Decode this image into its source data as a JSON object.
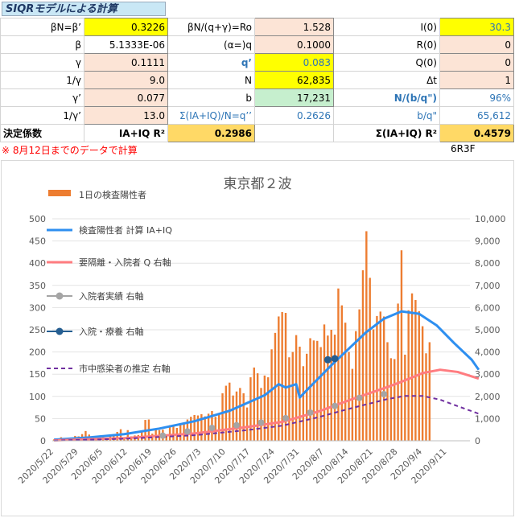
{
  "sheet": {
    "title": "SIQRモデルによる計算",
    "rows": [
      [
        {
          "t": "βN=β’",
          "c": "lbl"
        },
        {
          "t": "0.3226",
          "c": "val yel"
        },
        {
          "t": "βN/(q+γ)=Ro",
          "c": "lbl"
        },
        {
          "t": "1.528",
          "c": "val pch"
        },
        {
          "t": "I(0)",
          "c": "lbl"
        },
        {
          "t": "30.3",
          "c": "val yel blue"
        }
      ],
      [
        {
          "t": "β",
          "c": "lbl"
        },
        {
          "t": "5.1333E-06",
          "c": "val"
        },
        {
          "t": "(α=)q",
          "c": "lbl"
        },
        {
          "t": "0.1000",
          "c": "val pch"
        },
        {
          "t": "R(0)",
          "c": "lbl"
        },
        {
          "t": "0",
          "c": "val pch"
        }
      ],
      [
        {
          "t": "γ",
          "c": "lbl"
        },
        {
          "t": "0.1111",
          "c": "val pch"
        },
        {
          "t": "q’",
          "c": "lbl blue bold"
        },
        {
          "t": "0.083",
          "c": "val yel blue"
        },
        {
          "t": "Q(0)",
          "c": "lbl"
        },
        {
          "t": "0",
          "c": "val pch"
        }
      ],
      [
        {
          "t": "1/γ",
          "c": "lbl"
        },
        {
          "t": "9.0",
          "c": "val pch"
        },
        {
          "t": "N",
          "c": "lbl"
        },
        {
          "t": "62,835",
          "c": "val yel"
        },
        {
          "t": "Δt",
          "c": "lbl"
        },
        {
          "t": "1",
          "c": "val pch"
        }
      ],
      [
        {
          "t": "γ’",
          "c": "lbl"
        },
        {
          "t": "0.077",
          "c": "val pch"
        },
        {
          "t": "b",
          "c": "lbl"
        },
        {
          "t": "17,231",
          "c": "val grn"
        },
        {
          "t": "N/(b/q\")",
          "c": "lbl blue bold"
        },
        {
          "t": "96%",
          "c": "lbl blue"
        }
      ],
      [
        {
          "t": "1/γ’",
          "c": "lbl"
        },
        {
          "t": "13.0",
          "c": "val pch"
        },
        {
          "t": "Σ(IA+IQ)/N=q’’",
          "c": "lbl blue"
        },
        {
          "t": "0.2626",
          "c": "lbl blue"
        },
        {
          "t": "b/q\"",
          "c": "lbl blue"
        },
        {
          "t": "65,612",
          "c": "lbl blue"
        }
      ]
    ],
    "r2_label": "決定係数",
    "r2_a_label": "IA+IQ R²",
    "r2_a_value": "0.2986",
    "r2_b_label": "Σ(IA+IQ) R²",
    "r2_b_value": "0.4579",
    "note": "※ 8月12日までのデータで計算",
    "code": "6R3F"
  },
  "chart_data": {
    "type": "bar",
    "title": "東京都２波",
    "legend": [
      {
        "name": "1日の検査陽性者",
        "color": "#ed7d31",
        "kind": "bar"
      },
      {
        "name": "検査陽性者 計算 IA+IQ",
        "color": "#2e8ff0",
        "kind": "line"
      },
      {
        "name": "要隔離・入院者 Q 右軸",
        "color": "#ff7c80",
        "kind": "line"
      },
      {
        "name": "入院者実績 右軸",
        "color": "#a5a5a5",
        "kind": "marker"
      },
      {
        "name": "入院・療養 右軸",
        "color": "#255e91",
        "kind": "marker"
      },
      {
        "name": "市中感染者の推定 右軸",
        "color": "#7030a0",
        "kind": "dashed"
      }
    ],
    "y_left": {
      "min": 0,
      "max": 500,
      "ticks": [
        "0",
        "50",
        "100",
        "150",
        "200",
        "250",
        "300",
        "350",
        "400",
        "450",
        "500"
      ]
    },
    "y_right": {
      "min": 0,
      "max": 10000,
      "ticks": [
        "0",
        "1,000",
        "2,000",
        "3,000",
        "4,000",
        "5,000",
        "6,000",
        "7,000",
        "8,000",
        "9,000",
        "10,000"
      ]
    },
    "x_ticks": [
      "2020/5/22",
      "2020/5/29",
      "2020/6/5",
      "2020/6/12",
      "2020/6/19",
      "2020/6/26",
      "2020/7/3",
      "2020/7/10",
      "2020/7/17",
      "2020/7/24",
      "2020/7/31",
      "2020/8/7",
      "2020/8/14",
      "2020/8/21",
      "2020/8/28",
      "2020/9/4",
      "2020/9/11"
    ],
    "x_start": "2020/5/22",
    "x_days": 117,
    "bars": [
      3,
      5,
      8,
      3,
      2,
      5,
      11,
      10,
      15,
      22,
      14,
      10,
      5,
      5,
      8,
      3,
      12,
      13,
      20,
      26,
      6,
      24,
      10,
      12,
      13,
      21,
      47,
      48,
      16,
      27,
      24,
      25,
      12,
      35,
      35,
      29,
      39,
      41,
      48,
      54,
      58,
      57,
      60,
      55,
      61,
      67,
      54,
      58,
      107,
      124,
      131,
      102,
      111,
      119,
      107,
      75,
      143,
      165,
      152,
      119,
      147,
      143,
      206,
      243,
      280,
      290,
      288,
      188,
      200,
      238,
      212,
      168,
      196,
      231,
      226,
      225,
      211,
      262,
      237,
      250,
      239,
      343,
      305,
      266,
      200,
      162,
      247,
      296,
      384,
      472,
      367,
      251,
      281,
      291,
      280,
      222,
      186,
      184,
      309,
      429,
      194,
      294,
      332,
      317,
      292,
      258,
      197,
      222
    ],
    "series": [
      {
        "name": "検査陽性者 計算 IA+IQ",
        "axis": "right",
        "points": [
          [
            0,
            50
          ],
          [
            10,
            150
          ],
          [
            20,
            300
          ],
          [
            30,
            550
          ],
          [
            40,
            880
          ],
          [
            50,
            1350
          ],
          [
            60,
            2050
          ],
          [
            64,
            2550
          ],
          [
            66,
            2400
          ],
          [
            69,
            2550
          ],
          [
            70,
            1950
          ],
          [
            74,
            2600
          ],
          [
            79,
            3400
          ],
          [
            84,
            4150
          ],
          [
            89,
            4900
          ],
          [
            94,
            5500
          ],
          [
            99,
            5830
          ],
          [
            104,
            5720
          ],
          [
            109,
            5200
          ],
          [
            114,
            4400
          ],
          [
            119,
            3650
          ],
          [
            121,
            3200
          ]
        ]
      },
      {
        "name": "要隔離・入院者 Q 右軸",
        "axis": "right",
        "points": [
          [
            0,
            20
          ],
          [
            20,
            120
          ],
          [
            40,
            330
          ],
          [
            55,
            620
          ],
          [
            65,
            850
          ],
          [
            75,
            1300
          ],
          [
            85,
            1880
          ],
          [
            95,
            2420
          ],
          [
            100,
            2720
          ],
          [
            105,
            3050
          ],
          [
            110,
            3200
          ],
          [
            115,
            3100
          ],
          [
            121,
            2800
          ]
        ]
      },
      {
        "name": "市中感染者の推定 右軸",
        "axis": "right",
        "dashed": true,
        "points": [
          [
            0,
            10
          ],
          [
            20,
            90
          ],
          [
            40,
            250
          ],
          [
            55,
            480
          ],
          [
            65,
            680
          ],
          [
            75,
            1050
          ],
          [
            85,
            1480
          ],
          [
            95,
            1880
          ],
          [
            100,
            2020
          ],
          [
            105,
            2020
          ],
          [
            110,
            1850
          ],
          [
            115,
            1560
          ],
          [
            121,
            1220
          ]
        ]
      }
    ],
    "markers_gray": [
      [
        31,
        230
      ],
      [
        38,
        420
      ],
      [
        45,
        580
      ],
      [
        52,
        700
      ],
      [
        59,
        820
      ],
      [
        66,
        1020
      ],
      [
        73,
        1270
      ],
      [
        80,
        1570
      ],
      [
        87,
        1930
      ],
      [
        94,
        2100
      ]
    ],
    "markers_navy": [
      [
        78,
        3650
      ],
      [
        80,
        3700
      ]
    ]
  }
}
